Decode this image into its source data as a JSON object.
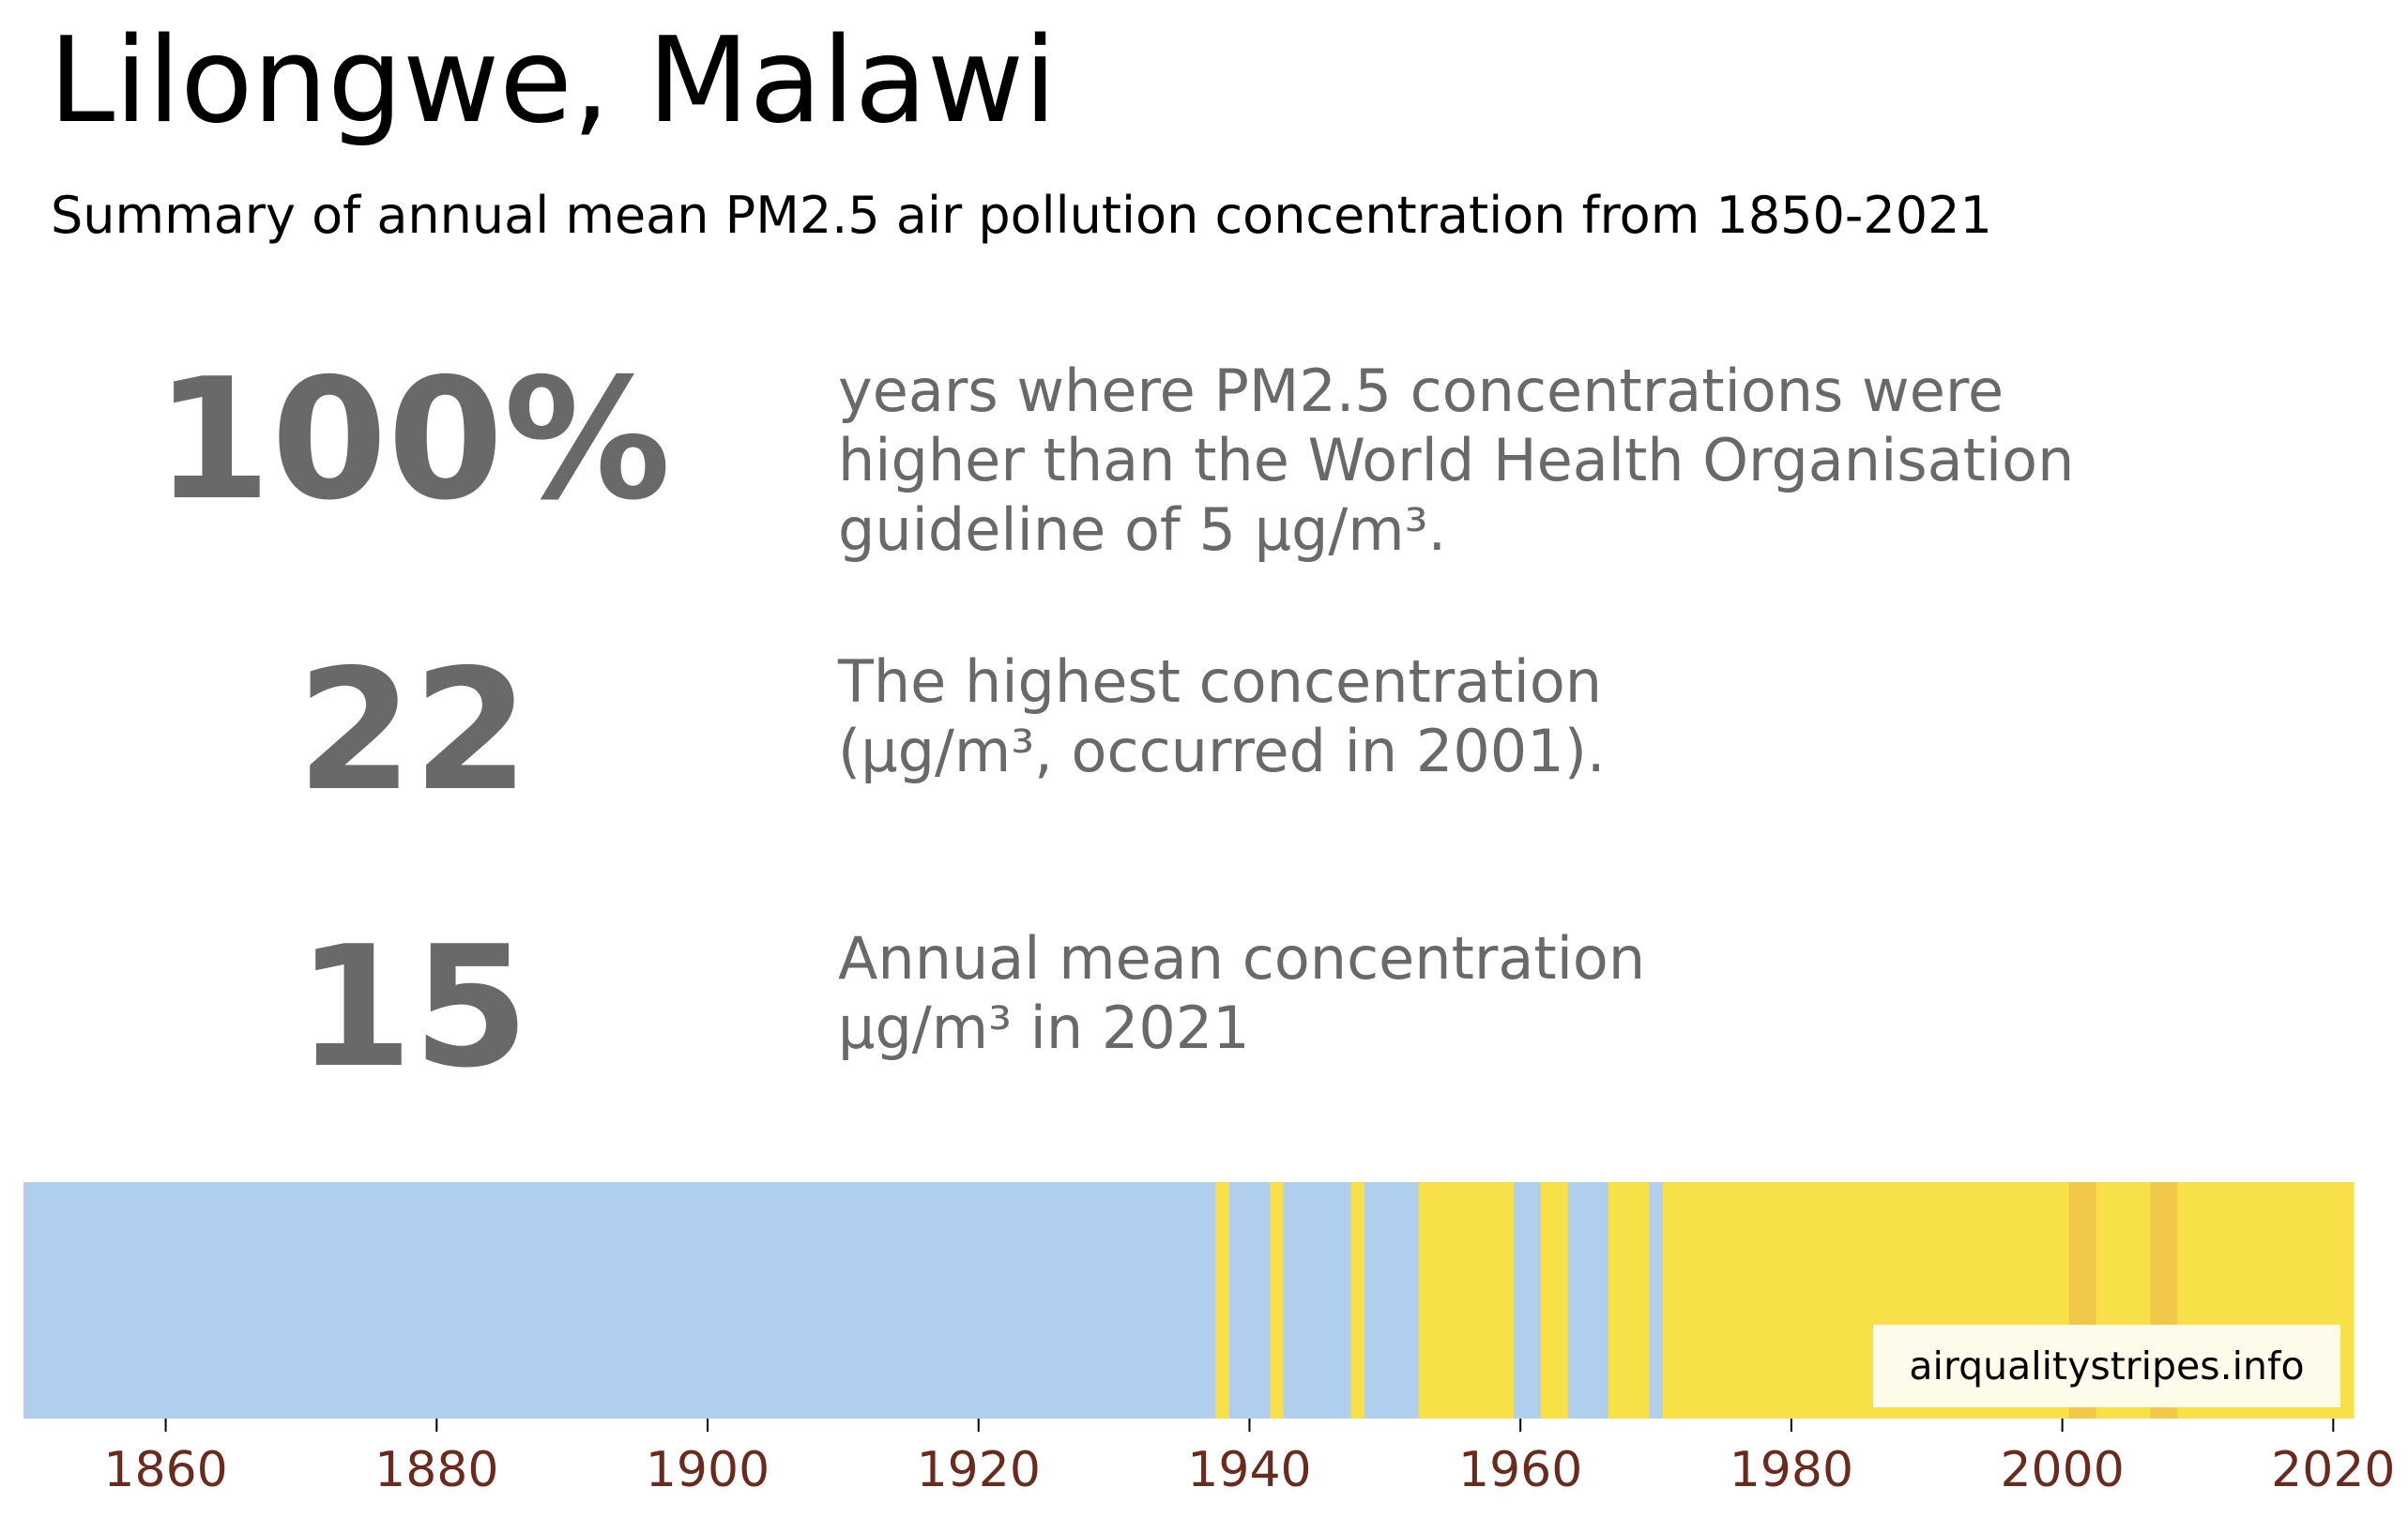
{
  "header": {
    "title": "Lilongwe, Malawi",
    "subtitle": "Summary of annual mean PM2.5 air pollution concentration from 1850-2021"
  },
  "stats": [
    {
      "value": "100%",
      "description": "years where PM2.5 concentrations were\nhigher than the World Health Organisation\nguideline of 5 µg/m³."
    },
    {
      "value": "22",
      "description": "The highest concentration\n(µg/m³, occurred in 2001)."
    },
    {
      "value": "15",
      "description": "Annual mean concentration\nµg/m³ in 2021"
    }
  ],
  "credit": "airqualitystripes.info",
  "colors": {
    "text_gray": "#696969",
    "low": "#b0cfee",
    "mid": "#f8e048",
    "high": "#f2c84a",
    "tick_label": "#6b2a1c"
  },
  "chart_data": {
    "type": "heatmap",
    "title": "",
    "xlabel": "",
    "ylabel": "",
    "x_range": [
      1850,
      2021
    ],
    "xlim": [
      1850,
      2022
    ],
    "x_ticks": [
      1860,
      1880,
      1900,
      1920,
      1940,
      1960,
      1980,
      2000,
      2020
    ],
    "color_categories": [
      "low",
      "mid",
      "high"
    ],
    "segments": [
      {
        "start": 1850,
        "end": 1937,
        "category": "low"
      },
      {
        "start": 1938,
        "end": 1938,
        "category": "mid"
      },
      {
        "start": 1939,
        "end": 1941,
        "category": "low"
      },
      {
        "start": 1942,
        "end": 1942,
        "category": "mid"
      },
      {
        "start": 1943,
        "end": 1947,
        "category": "low"
      },
      {
        "start": 1948,
        "end": 1948,
        "category": "mid"
      },
      {
        "start": 1949,
        "end": 1952,
        "category": "low"
      },
      {
        "start": 1953,
        "end": 1959,
        "category": "mid"
      },
      {
        "start": 1960,
        "end": 1961,
        "category": "low"
      },
      {
        "start": 1962,
        "end": 1963,
        "category": "mid"
      },
      {
        "start": 1964,
        "end": 1966,
        "category": "low"
      },
      {
        "start": 1967,
        "end": 1969,
        "category": "mid"
      },
      {
        "start": 1970,
        "end": 1970,
        "category": "low"
      },
      {
        "start": 1971,
        "end": 2000,
        "category": "mid"
      },
      {
        "start": 2001,
        "end": 2002,
        "category": "high"
      },
      {
        "start": 2003,
        "end": 2006,
        "category": "mid"
      },
      {
        "start": 2007,
        "end": 2008,
        "category": "high"
      },
      {
        "start": 2009,
        "end": 2021,
        "category": "mid"
      }
    ]
  }
}
